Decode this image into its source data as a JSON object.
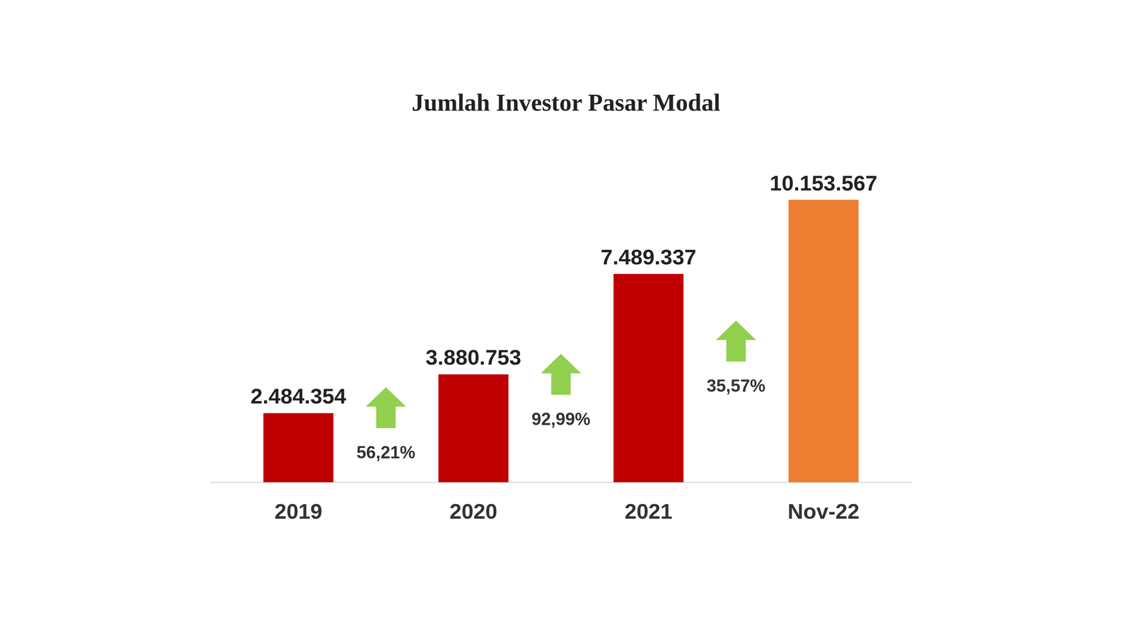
{
  "chart_data": {
    "type": "bar",
    "title": "Jumlah Investor Pasar Modal",
    "categories": [
      "2019",
      "2020",
      "2021",
      "Nov-22"
    ],
    "values": [
      2484354,
      3880753,
      7489337,
      10153567
    ],
    "value_labels": [
      "2.484.354",
      "3.880.753",
      "7.489.337",
      "10.153.567"
    ],
    "colors": [
      "#c00000",
      "#c00000",
      "#c00000",
      "#ed7d31"
    ],
    "annotations": [
      "56,21%",
      "92,99%",
      "35,57%"
    ],
    "data_labels": true,
    "tick_labels": "x",
    "grid": false
  }
}
